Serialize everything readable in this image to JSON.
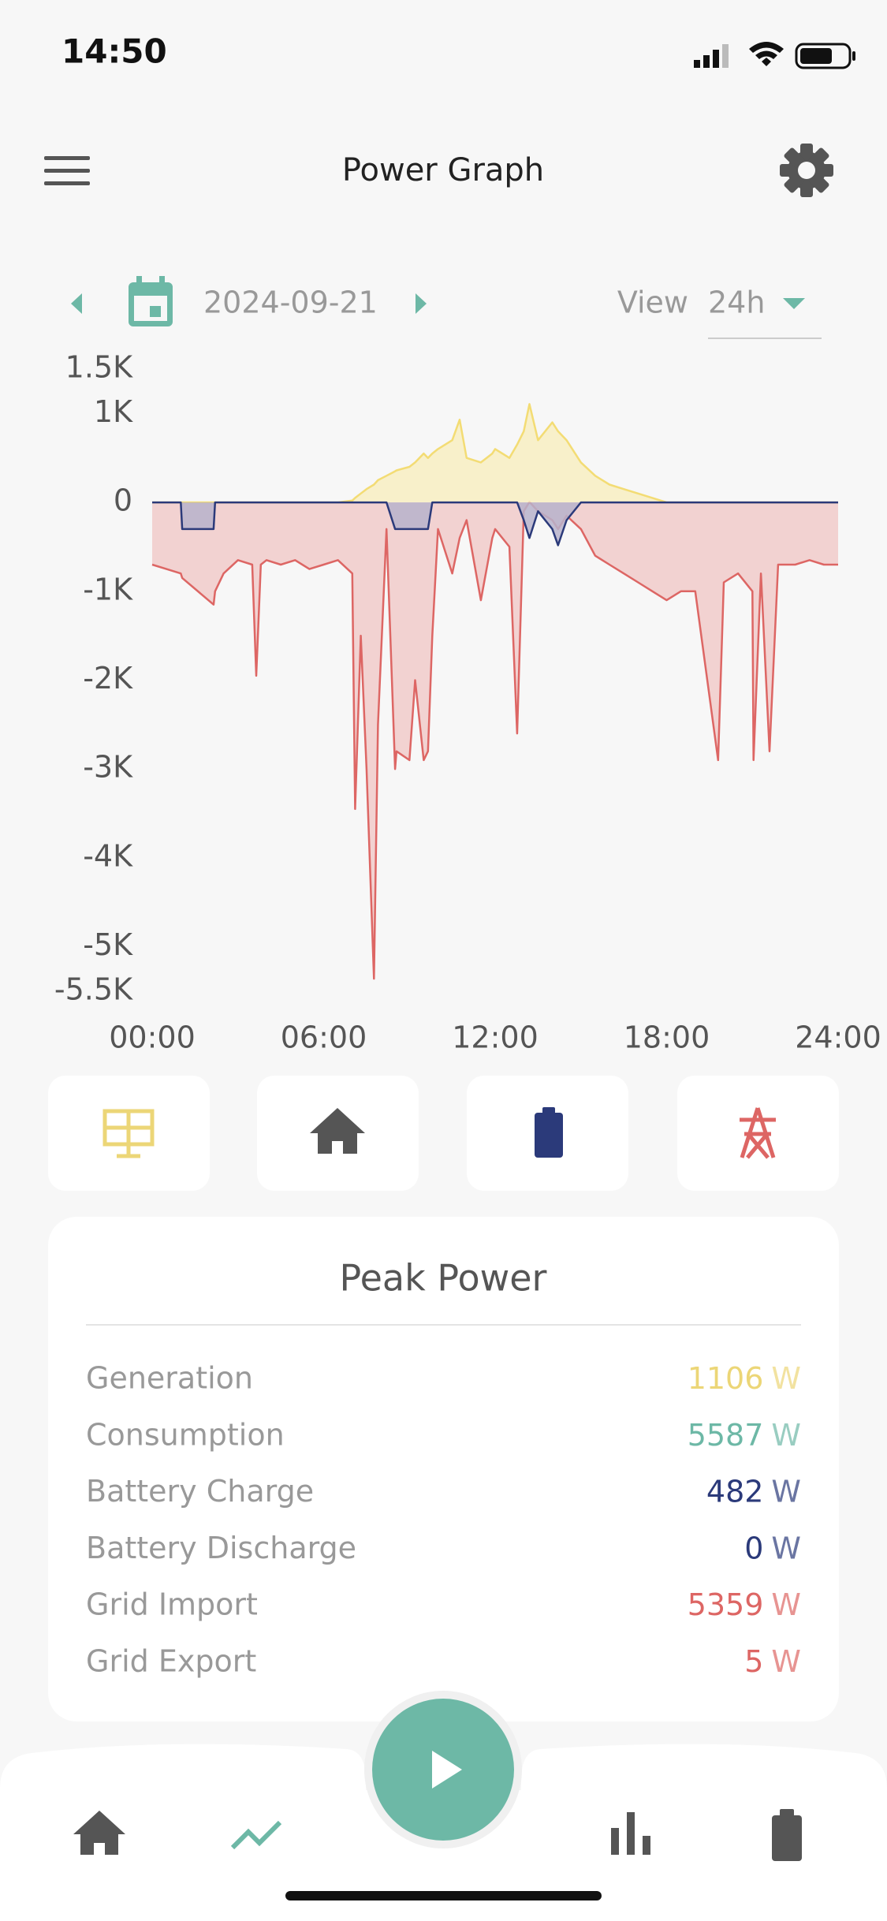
{
  "status": {
    "time": "14:50"
  },
  "header": {
    "title": "Power Graph"
  },
  "date_bar": {
    "date": "2024-09-21",
    "view_label": "View",
    "view_value": "24h"
  },
  "chart_data": {
    "type": "area",
    "x": [
      0,
      0.5,
      1,
      1.05,
      2.15,
      2.2,
      2.5,
      3,
      3.5,
      3.64,
      3.8,
      4,
      4.5,
      5,
      5.5,
      6,
      6.5,
      7,
      7.1,
      7.3,
      7.5,
      7.76,
      7.9,
      8.2,
      8.5,
      8.55,
      9,
      9.2,
      9.5,
      9.65,
      9.8,
      10,
      10.5,
      10.76,
      11,
      11.5,
      11.9,
      12,
      12.5,
      12.77,
      13,
      13.2,
      13.5,
      14,
      14.2,
      14.5,
      15,
      15.5,
      16,
      16.5,
      17,
      17.5,
      18,
      18.5,
      19,
      19.8,
      20,
      20.5,
      21,
      21.04,
      21.3,
      21.6,
      21.9,
      22.5,
      23,
      23.5,
      24
    ],
    "series": [
      {
        "name": "Grid",
        "color": "#dd6664",
        "fill": "#f1cbca",
        "values": [
          -700,
          -750,
          -800,
          -850,
          -1150,
          -1000,
          -800,
          -650,
          -700,
          -1950,
          -700,
          -650,
          -700,
          -650,
          -750,
          -700,
          -650,
          -800,
          -3450,
          -1500,
          -3000,
          -5359,
          -2500,
          -300,
          -3000,
          -2800,
          -2900,
          -2000,
          -2900,
          -2800,
          -1500,
          -300,
          -800,
          -400,
          -200,
          -1100,
          -400,
          -300,
          -500,
          -2600,
          -100,
          5,
          -100,
          -200,
          -300,
          -150,
          -300,
          -600,
          -700,
          -800,
          -900,
          -1000,
          -1100,
          -1000,
          -1000,
          -2900,
          -900,
          -800,
          -1000,
          -2900,
          -800,
          -2800,
          -700,
          -700,
          -650,
          -700,
          -700
        ]
      },
      {
        "name": "Generation",
        "color": "#f3dc74",
        "fill": "#f8efc2",
        "values": [
          0,
          0,
          0,
          0,
          0,
          0,
          0,
          0,
          0,
          0,
          0,
          0,
          0,
          0,
          0,
          0,
          0,
          20,
          50,
          100,
          150,
          200,
          250,
          300,
          350,
          360,
          400,
          450,
          550,
          500,
          550,
          600,
          700,
          930,
          500,
          450,
          550,
          600,
          500,
          650,
          800,
          1106,
          700,
          900,
          800,
          700,
          450,
          300,
          200,
          150,
          100,
          50,
          0,
          0,
          0,
          0,
          0,
          0,
          0,
          0,
          0,
          0,
          0,
          0,
          0,
          0,
          0
        ]
      },
      {
        "name": "Battery",
        "color": "#2b3a7a",
        "fill": "#b7b3cb",
        "values": [
          0,
          0,
          0,
          -300,
          -300,
          0,
          0,
          0,
          0,
          0,
          0,
          0,
          0,
          0,
          0,
          0,
          0,
          0,
          0,
          0,
          0,
          0,
          0,
          0,
          -300,
          -300,
          -300,
          -300,
          -300,
          -300,
          0,
          0,
          0,
          0,
          0,
          0,
          0,
          0,
          0,
          0,
          -200,
          -400,
          -100,
          -300,
          -482,
          -200,
          0,
          0,
          0,
          0,
          0,
          0,
          0,
          0,
          0,
          0,
          0,
          0,
          0,
          0,
          0,
          0,
          0,
          0,
          0,
          0,
          0
        ]
      }
    ],
    "xlim": [
      0,
      24
    ],
    "xticks": [
      {
        "value": 0,
        "label": "00:00"
      },
      {
        "value": 6,
        "label": "06:00"
      },
      {
        "value": 12,
        "label": "12:00"
      },
      {
        "value": 18,
        "label": "18:00"
      },
      {
        "value": 24,
        "label": "24:00"
      }
    ],
    "ylim": [
      -5500,
      1500
    ],
    "yticks": [
      {
        "value": 1500,
        "label": "1.5K"
      },
      {
        "value": 1000,
        "label": "1K"
      },
      0,
      {
        "value": -1000,
        "label": "-1K"
      },
      {
        "value": -2000,
        "label": "-2K"
      },
      {
        "value": -3000,
        "label": "-3K"
      },
      {
        "value": -4000,
        "label": "-4K"
      },
      {
        "value": -5000,
        "label": "-5K"
      },
      {
        "value": -5500,
        "label": "-5.5K"
      }
    ]
  },
  "peak_power": {
    "title": "Peak Power",
    "rows": [
      {
        "label": "Generation",
        "value": 1106,
        "unit": "W",
        "color": "#ecd677"
      },
      {
        "label": "Consumption",
        "value": 5587,
        "unit": "W",
        "color": "#6db8a6"
      },
      {
        "label": "Battery Charge",
        "value": 482,
        "unit": "W",
        "color": "#2b3a7a"
      },
      {
        "label": "Battery Discharge",
        "value": 0,
        "unit": "W",
        "color": "#2b3a7a"
      },
      {
        "label": "Grid Import",
        "value": 5359,
        "unit": "W",
        "color": "#dd6664"
      },
      {
        "label": "Grid Export",
        "value": 5,
        "unit": "W",
        "color": "#dd6664"
      }
    ]
  }
}
